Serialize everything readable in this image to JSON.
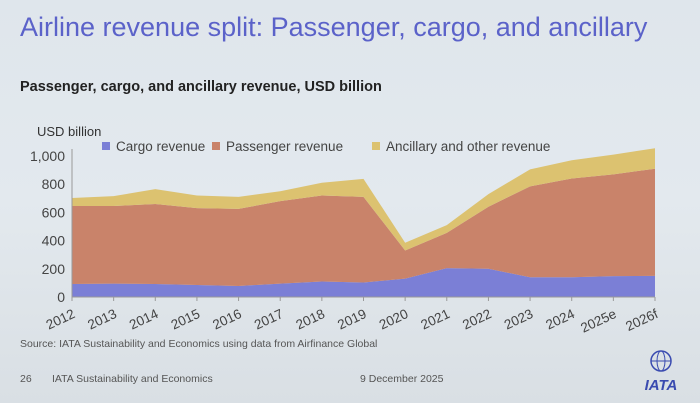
{
  "slide": {
    "title": "Airline revenue split: Passenger, cargo, and ancillary",
    "subtitle": "Passenger, cargo, and ancillary revenue, USD billion",
    "source": "Source: IATA Sustainability and Economics using data from Airfinance Global",
    "page_number": "26",
    "footer_org": "IATA Sustainability and Economics",
    "date": "9 December 2025",
    "logo_text": "IATA"
  },
  "chart_data": {
    "type": "area",
    "stacked": true,
    "ylabel": "USD billion",
    "ylim": [
      0,
      1050
    ],
    "yticks": [
      "0",
      "200",
      "400",
      "600",
      "800",
      "1,000"
    ],
    "ytick_values": [
      0,
      200,
      400,
      600,
      800,
      1000
    ],
    "categories": [
      "2012",
      "2013",
      "2014",
      "2015",
      "2016",
      "2017",
      "2018",
      "2019",
      "2020",
      "2021",
      "2022",
      "2023",
      "2024",
      "2025e",
      "2026f"
    ],
    "legend_position": "top",
    "grid": false,
    "series": [
      {
        "name": "Cargo revenue",
        "color": "#7b7fd6",
        "values": [
          92,
          95,
          92,
          85,
          78,
          95,
          110,
          103,
          130,
          205,
          200,
          140,
          140,
          148,
          150
        ]
      },
      {
        "name": "Passenger revenue",
        "color": "#c9836a",
        "values": [
          553,
          550,
          568,
          545,
          547,
          585,
          610,
          607,
          200,
          250,
          440,
          645,
          700,
          722,
          760
        ]
      },
      {
        "name": "Ancillary and other revenue",
        "color": "#dcc270",
        "values": [
          57,
          70,
          105,
          90,
          85,
          70,
          90,
          128,
          55,
          55,
          90,
          120,
          130,
          140,
          145
        ]
      }
    ]
  }
}
